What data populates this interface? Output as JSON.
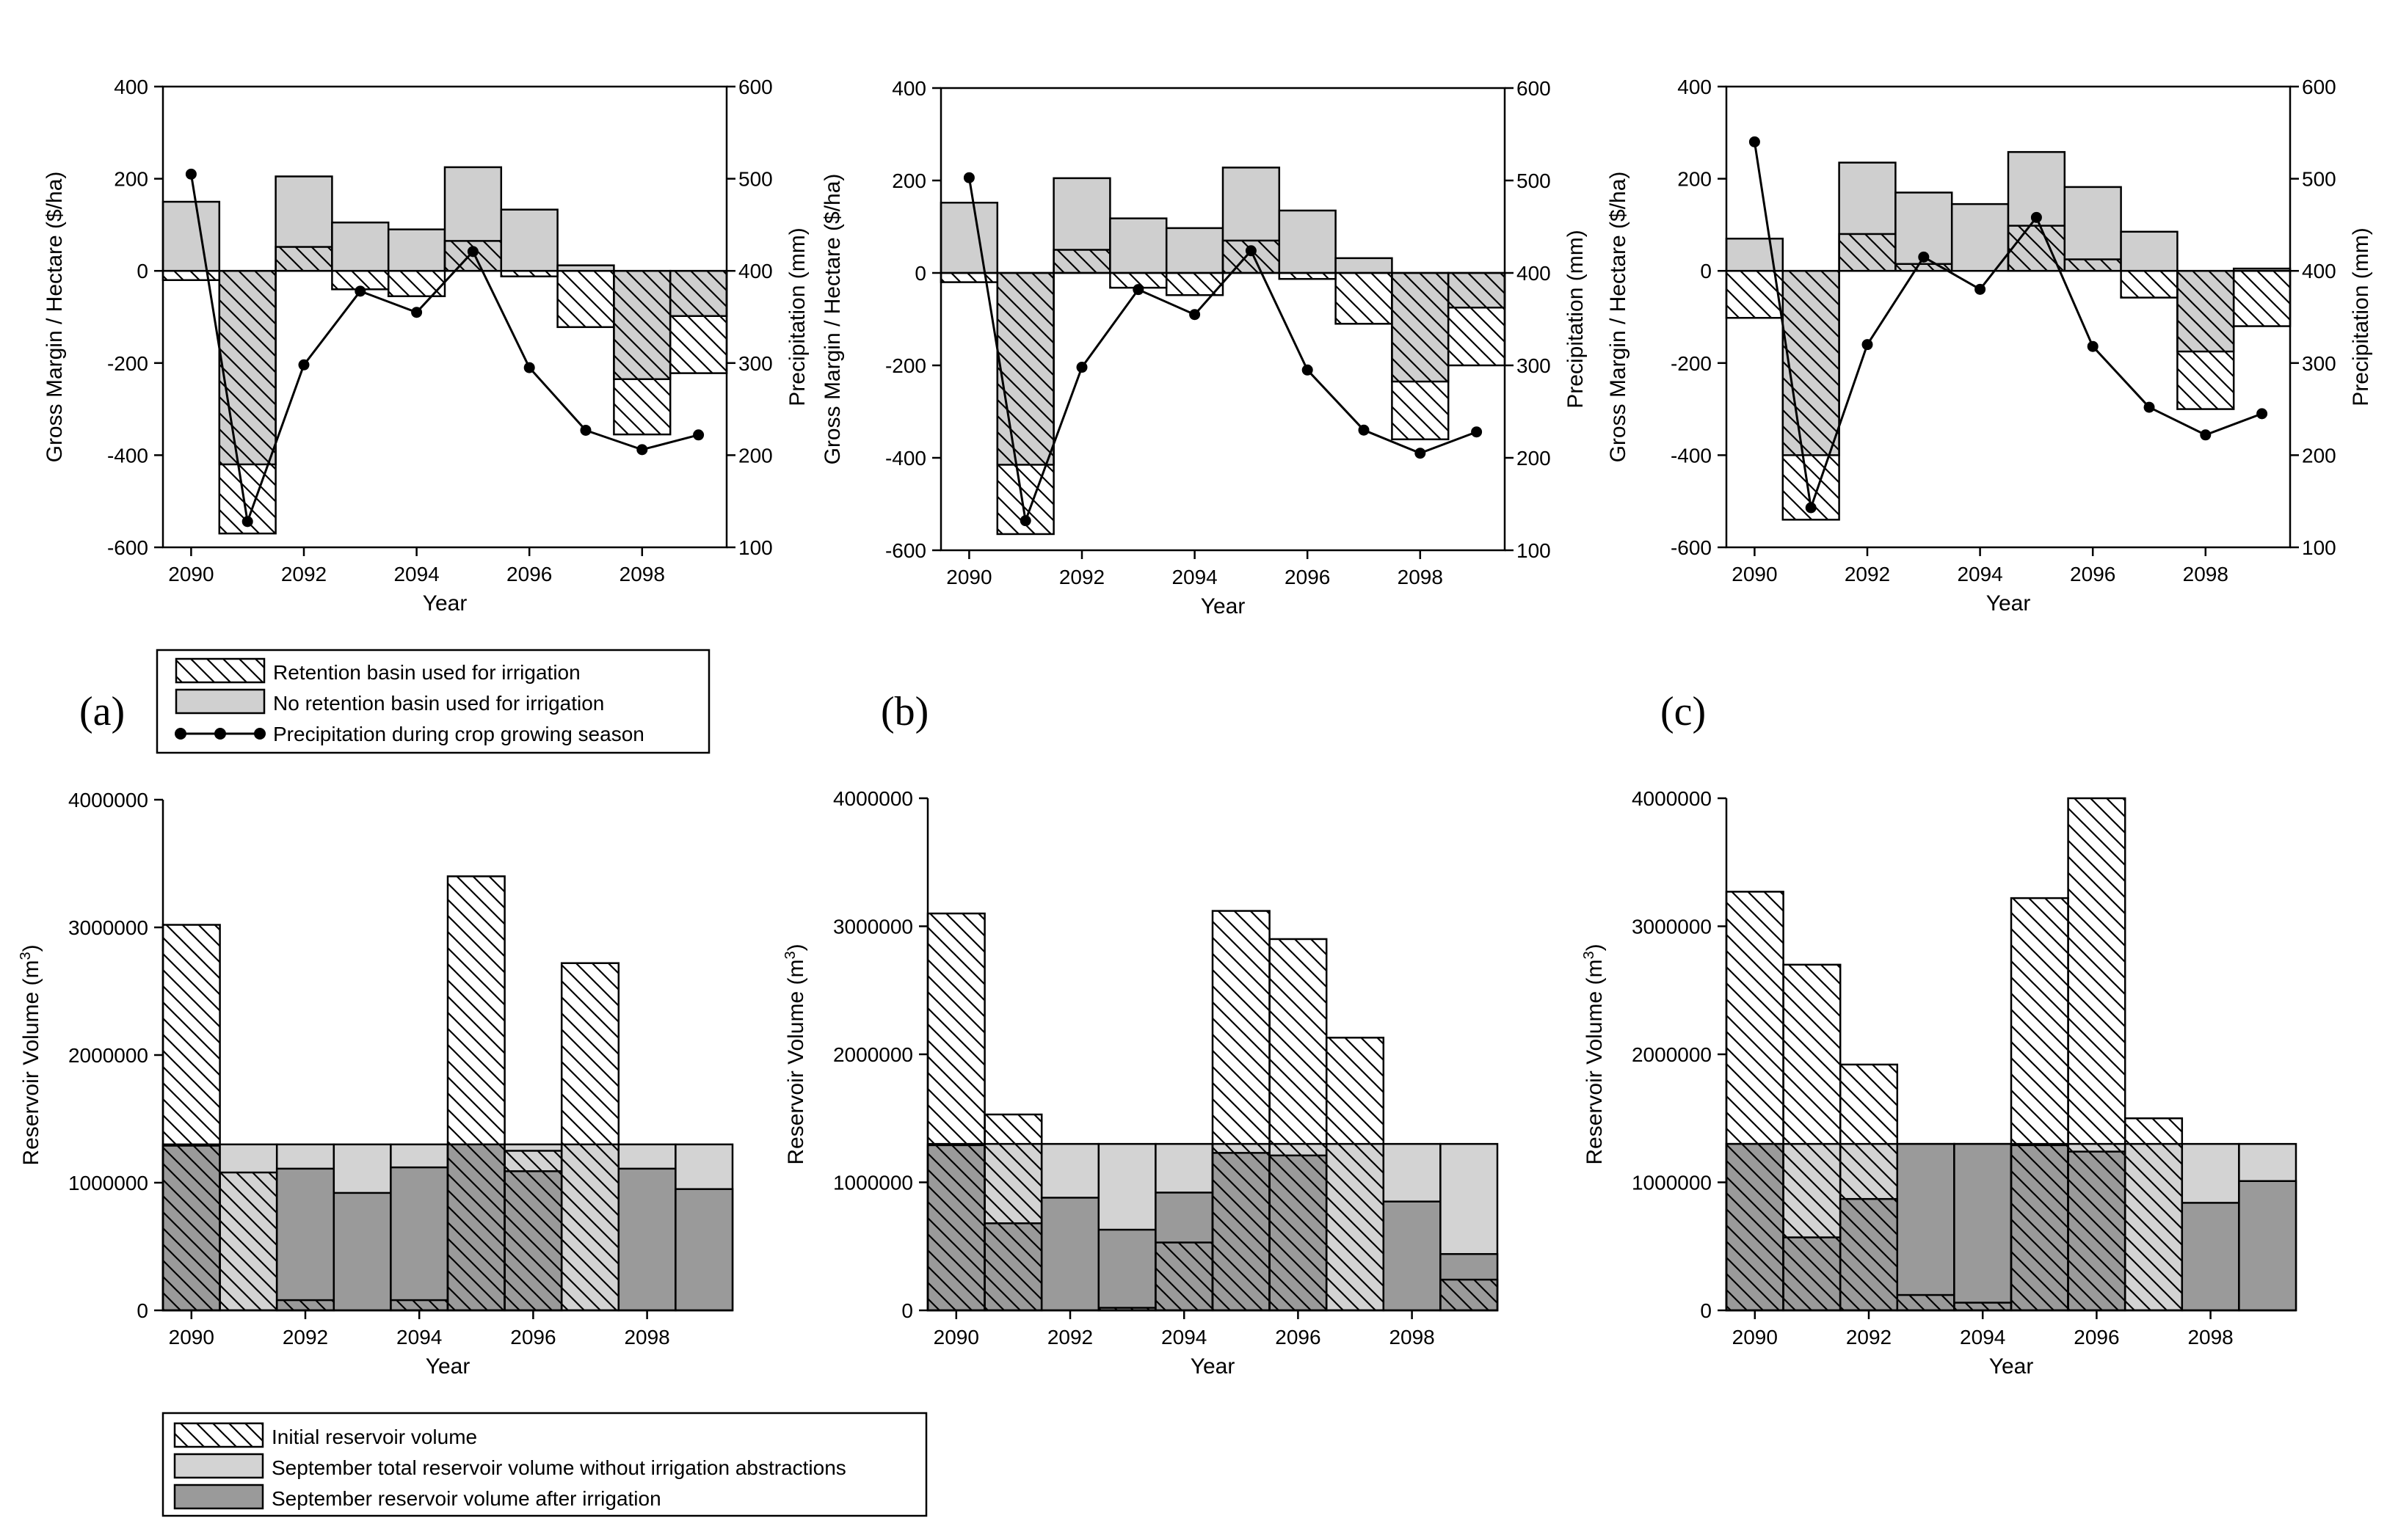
{
  "panel_labels": [
    "(a)",
    "(b)",
    "(c)"
  ],
  "legend_top": {
    "items": [
      {
        "label": "Retention basin used for irrigation",
        "style": "hatch"
      },
      {
        "label": "No retention basin used for irrigation",
        "style": "fill",
        "color": "#d0d0d0"
      },
      {
        "label": "Precipitation during crop growing season",
        "style": "line-marker"
      }
    ]
  },
  "legend_bottom": {
    "items": [
      {
        "label": "Initial reservoir volume",
        "style": "hatch"
      },
      {
        "label": "September total reservoir volume without irrigation abstractions",
        "style": "fill",
        "color": "#d3d3d3"
      },
      {
        "label": "September reservoir volume after irrigation",
        "style": "fill",
        "color": "#9a9a9a"
      }
    ]
  },
  "colors": {
    "light_gray": "#cfcfcf",
    "dark_gray": "#9a9a9a",
    "line": "#000000"
  },
  "chart_data": [
    {
      "id": "a-top",
      "type": "bar",
      "xlabel": "Year",
      "ylabel": "Gross Margin / Hectare ($/ha)",
      "y2label": "Precipitation (mm)",
      "x": [
        2090,
        2091,
        2092,
        2093,
        2094,
        2095,
        2096,
        2097,
        2098,
        2099
      ],
      "xticks": [
        2090,
        2092,
        2094,
        2096,
        2098
      ],
      "ylim": [
        -600,
        400
      ],
      "yticks": [
        -600,
        -400,
        -200,
        0,
        200,
        400
      ],
      "y2lim": [
        100,
        600
      ],
      "y2ticks": [
        100,
        200,
        300,
        400,
        500,
        600
      ],
      "no_basin": [
        150,
        -420,
        205,
        105,
        90,
        225,
        133,
        12,
        -235,
        -98
      ],
      "with_basin": [
        -20,
        -570,
        52,
        -40,
        -55,
        65,
        -12,
        -122,
        -355,
        -222
      ],
      "precipitation": [
        505,
        128,
        298,
        378,
        355,
        421,
        295,
        227,
        206,
        222
      ]
    },
    {
      "id": "b-top",
      "type": "bar",
      "xlabel": "Year",
      "ylabel": "Gross Margin / Hectare ($/ha)",
      "y2label": "Precipitation (mm)",
      "x": [
        2090,
        2091,
        2092,
        2093,
        2094,
        2095,
        2096,
        2097,
        2098,
        2099
      ],
      "xticks": [
        2090,
        2092,
        2094,
        2096,
        2098
      ],
      "ylim": [
        -600,
        400
      ],
      "yticks": [
        -600,
        -400,
        -200,
        0,
        200,
        400
      ],
      "y2lim": [
        100,
        600
      ],
      "y2ticks": [
        100,
        200,
        300,
        400,
        500,
        600
      ],
      "no_basin": [
        152,
        -415,
        205,
        118,
        97,
        228,
        135,
        32,
        -235,
        -75
      ],
      "with_basin": [
        -20,
        -565,
        50,
        -32,
        -48,
        70,
        -13,
        -110,
        -360,
        -200
      ],
      "precipitation": [
        503,
        132,
        298,
        382,
        355,
        424,
        295,
        230,
        205,
        228
      ]
    },
    {
      "id": "c-top",
      "type": "bar",
      "xlabel": "Year",
      "ylabel": "Gross Margin / Hectare ($/ha)",
      "y2label": "Precipitation (mm)",
      "x": [
        2090,
        2091,
        2092,
        2093,
        2094,
        2095,
        2096,
        2097,
        2098,
        2099
      ],
      "xticks": [
        2090,
        2092,
        2094,
        2096,
        2098
      ],
      "ylim": [
        -600,
        400
      ],
      "yticks": [
        -600,
        -400,
        -200,
        0,
        200,
        400
      ],
      "y2lim": [
        100,
        600
      ],
      "y2ticks": [
        100,
        200,
        300,
        400,
        500,
        600
      ],
      "no_basin": [
        70,
        -400,
        235,
        170,
        145,
        258,
        182,
        85,
        -175,
        5
      ],
      "with_basin": [
        -102,
        -540,
        80,
        15,
        0,
        98,
        25,
        -58,
        -300,
        -120
      ],
      "precipitation": [
        540,
        143,
        320,
        415,
        380,
        458,
        318,
        252,
        222,
        245
      ]
    },
    {
      "id": "a-bottom",
      "type": "bar",
      "xlabel": "Year",
      "ylabel": "Reservoir Volume (m",
      "ylabel_sup": "3",
      "ylabel_suffix": ")",
      "x": [
        2090,
        2091,
        2092,
        2093,
        2094,
        2095,
        2096,
        2097,
        2098,
        2099
      ],
      "xticks": [
        2090,
        2092,
        2094,
        2096,
        2098
      ],
      "ylim": [
        0,
        4000000
      ],
      "yticks": [
        0,
        1000000,
        2000000,
        3000000,
        4000000
      ],
      "initial": [
        3020000,
        1080000,
        80000,
        0,
        80000,
        3400000,
        1250000,
        2720000,
        0,
        0
      ],
      "september_total": [
        1300000,
        1300000,
        1300000,
        1300000,
        1300000,
        1300000,
        1300000,
        1300000,
        1300000,
        1300000
      ],
      "after_irrigation": [
        1290000,
        0,
        1110000,
        920000,
        1120000,
        1300000,
        1090000,
        0,
        1110000,
        950000
      ]
    },
    {
      "id": "b-bottom",
      "type": "bar",
      "xlabel": "Year",
      "ylabel": "Reservoir Volume (m",
      "ylabel_sup": "3",
      "ylabel_suffix": ")",
      "x": [
        2090,
        2091,
        2092,
        2093,
        2094,
        2095,
        2096,
        2097,
        2098,
        2099
      ],
      "xticks": [
        2090,
        2092,
        2094,
        2096,
        2098
      ],
      "ylim": [
        0,
        4000000
      ],
      "yticks": [
        0,
        1000000,
        2000000,
        3000000,
        4000000
      ],
      "initial": [
        3100000,
        1530000,
        0,
        20000,
        530000,
        3120000,
        2900000,
        2130000,
        0,
        240000
      ],
      "september_total": [
        1300000,
        1300000,
        1300000,
        1300000,
        1300000,
        1300000,
        1300000,
        1300000,
        1300000,
        1300000
      ],
      "after_irrigation": [
        1290000,
        680000,
        880000,
        630000,
        920000,
        1230000,
        1210000,
        0,
        850000,
        440000
      ]
    },
    {
      "id": "c-bottom",
      "type": "bar",
      "xlabel": "Year",
      "ylabel": "Reservoir Volume (m",
      "ylabel_sup": "3",
      "ylabel_suffix": ")",
      "x": [
        2090,
        2091,
        2092,
        2093,
        2094,
        2095,
        2096,
        2097,
        2098,
        2099
      ],
      "xticks": [
        2090,
        2092,
        2094,
        2096,
        2098
      ],
      "ylim": [
        0,
        4000000
      ],
      "yticks": [
        0,
        1000000,
        2000000,
        3000000,
        4000000
      ],
      "initial": [
        3270000,
        2700000,
        1920000,
        120000,
        60000,
        3220000,
        4000000,
        1500000,
        0,
        0
      ],
      "september_total": [
        1300000,
        1300000,
        1300000,
        1300000,
        1300000,
        1300000,
        1300000,
        1300000,
        1300000,
        1300000
      ],
      "after_irrigation": [
        1300000,
        570000,
        870000,
        1300000,
        1300000,
        1290000,
        1240000,
        0,
        840000,
        1010000
      ]
    }
  ]
}
